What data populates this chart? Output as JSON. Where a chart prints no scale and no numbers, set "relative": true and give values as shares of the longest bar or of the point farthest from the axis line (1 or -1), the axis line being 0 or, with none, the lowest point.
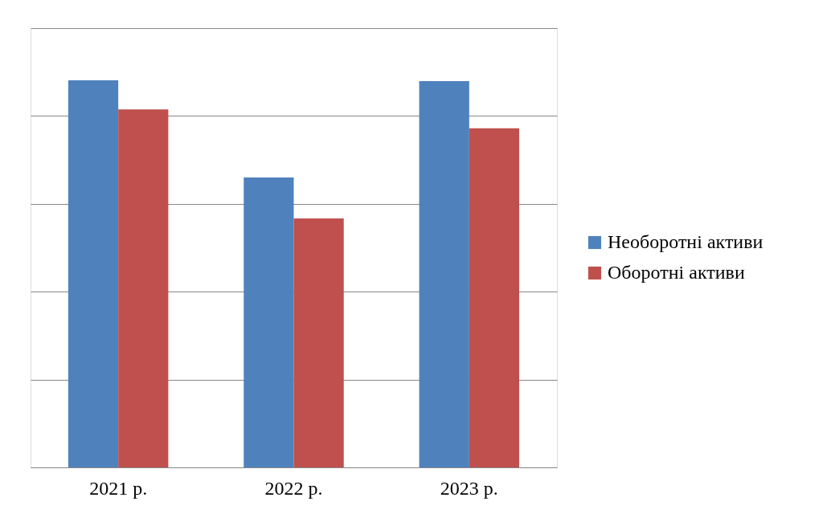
{
  "chart_data": {
    "type": "bar",
    "relative": true,
    "categories": [
      "2021 р.",
      "2022 р.",
      "2023 р."
    ],
    "series": [
      {
        "name": "Необоротні активи",
        "color": "#4f81bd",
        "values": [
          1.0,
          0.749,
          0.998
        ]
      },
      {
        "name": "Оборотні активи",
        "color": "#c0504d",
        "values": [
          0.925,
          0.643,
          0.876
        ]
      }
    ],
    "grid": "y",
    "legend": "right"
  }
}
